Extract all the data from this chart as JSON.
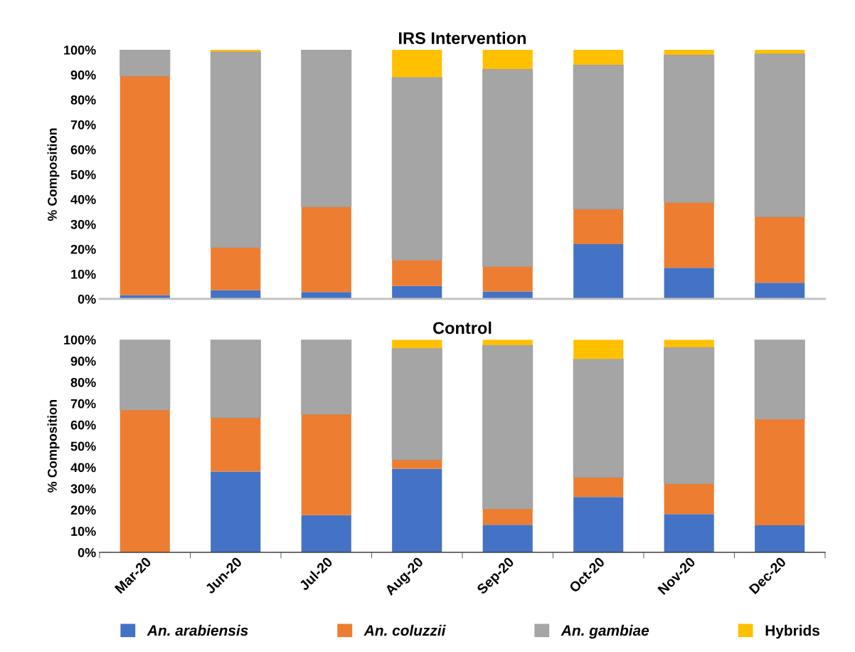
{
  "chart_data": [
    {
      "type": "bar",
      "stacked": true,
      "title": "IRS Intervention",
      "ylabel": "% Composition",
      "categories": [
        null,
        null,
        null,
        null,
        null,
        null,
        null,
        null
      ],
      "series": [
        {
          "name": "An. arabiensis",
          "color": "#4472c4",
          "values": [
            1.5,
            3.5,
            2.8,
            5.2,
            3,
            22,
            12.5,
            6.5
          ]
        },
        {
          "name": "An. coluzzii",
          "color": "#ed7d31",
          "values": [
            88,
            17.2,
            34.2,
            10.4,
            10,
            14,
            26.3,
            26.5
          ]
        },
        {
          "name": "An. gambiae",
          "color": "#a5a5a5",
          "values": [
            10.5,
            78.6,
            63,
            73.4,
            79.3,
            58,
            59.2,
            65.5
          ]
        },
        {
          "name": "Hybrids",
          "color": "#ffc000",
          "values": [
            0,
            0.7,
            0,
            11,
            7.7,
            6,
            2,
            1.5
          ]
        }
      ],
      "ylim": [
        0,
        100
      ],
      "yticks": [
        {
          "value": 0,
          "label": "0%"
        },
        {
          "value": 10,
          "label": "10%"
        },
        {
          "value": 20,
          "label": "20%"
        },
        {
          "value": 30,
          "label": "30%"
        },
        {
          "value": 40,
          "label": "40%"
        },
        {
          "value": 50,
          "label": "50%"
        },
        {
          "value": 60,
          "label": "60%"
        },
        {
          "value": 70,
          "label": "70%"
        },
        {
          "value": 80,
          "label": "80%"
        },
        {
          "value": 90,
          "label": "90%"
        },
        {
          "value": 100,
          "label": "100%"
        }
      ],
      "tick_labels": "y",
      "legend": "bottom"
    },
    {
      "type": "bar",
      "stacked": true,
      "title": "Control",
      "ylabel": "% Composition",
      "categories": [
        "Mar-20",
        "Jun-20",
        "Jul-20",
        "Aug-20",
        "Sep-20",
        "Oct-20",
        "Nov-20",
        "Dec-20"
      ],
      "series": [
        {
          "color": "#4472c4",
          "values": [
            0,
            38,
            17.5,
            39.3,
            13,
            26,
            18,
            12.7
          ]
        },
        {
          "color": "#ed7d31",
          "values": [
            67,
            25.3,
            47.5,
            4.2,
            7.5,
            9.3,
            14.3,
            50
          ]
        },
        {
          "color": "#a5a5a5",
          "values": [
            33,
            36.7,
            35,
            52.5,
            77,
            55.7,
            64.2,
            37.3
          ]
        },
        {
          "color": "#ffc000",
          "values": [
            0,
            0,
            0,
            4,
            2.5,
            9,
            3.5,
            0
          ]
        }
      ],
      "ylim": [
        0,
        100
      ],
      "yticks": [
        {
          "value": 0,
          "label": "0%"
        },
        {
          "value": 10,
          "label": "10%"
        },
        {
          "value": 20,
          "label": "20%"
        },
        {
          "value": 30,
          "label": "30%"
        },
        {
          "value": 40,
          "label": "40%"
        },
        {
          "value": 50,
          "label": "50%"
        },
        {
          "value": 60,
          "label": "60%"
        },
        {
          "value": 70,
          "label": "70%"
        },
        {
          "value": 80,
          "label": "80%"
        },
        {
          "value": 90,
          "label": "90%"
        },
        {
          "value": 100,
          "label": "100%"
        }
      ]
    }
  ]
}
